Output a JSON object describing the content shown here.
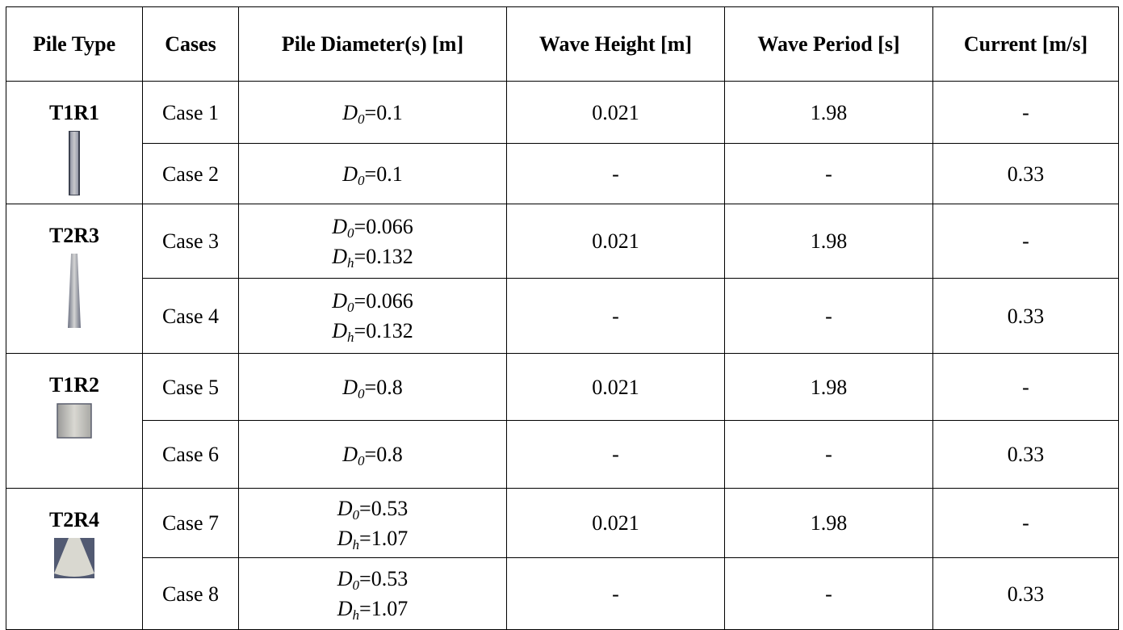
{
  "table": {
    "header": [
      "Pile Type",
      "Cases",
      "Pile Diameter(s) [m]",
      "Wave Height [m]",
      "Wave Period [s]",
      "Current [m/s]"
    ],
    "groups": [
      {
        "pile_type": "T1R1",
        "rows": [
          {
            "case": "Case 1",
            "diameters": [
              {
                "symbol": "D",
                "subscript": "0",
                "value": "=0.1"
              }
            ],
            "wave_height": 0.021,
            "wave_period": 1.98,
            "current": "-"
          },
          {
            "case": "Case 2",
            "diameters": [
              {
                "symbol": "D",
                "subscript": "0",
                "value": "=0.1"
              }
            ],
            "wave_height": "-",
            "wave_period": "-",
            "current": 0.33
          }
        ]
      },
      {
        "pile_type": "T2R3",
        "rows": [
          {
            "case": "Case 3",
            "diameters": [
              {
                "symbol": "D",
                "subscript": "0",
                "value": "=0.066"
              },
              {
                "symbol": "D",
                "subscript": "h",
                "value": "=0.132"
              }
            ],
            "wave_height": 0.021,
            "wave_period": 1.98,
            "current": "-"
          },
          {
            "case": "Case 4",
            "diameters": [
              {
                "symbol": "D",
                "subscript": "0",
                "value": "=0.066"
              },
              {
                "symbol": "D",
                "subscript": "h",
                "value": "=0.132"
              }
            ],
            "wave_height": "-",
            "wave_period": "-",
            "current": 0.33
          }
        ]
      },
      {
        "pile_type": "T1R2",
        "rows": [
          {
            "case": "Case 5",
            "diameters": [
              {
                "symbol": "D",
                "subscript": "0",
                "value": "=0.8"
              }
            ],
            "wave_height": 0.021,
            "wave_period": 1.98,
            "current": "-"
          },
          {
            "case": "Case 6",
            "diameters": [
              {
                "symbol": "D",
                "subscript": "0",
                "value": "=0.8"
              }
            ],
            "wave_height": "-",
            "wave_period": "-",
            "current": 0.33
          }
        ]
      },
      {
        "pile_type": "T2R4",
        "rows": [
          {
            "case": "Case 7",
            "diameters": [
              {
                "symbol": "D",
                "subscript": "0",
                "value": "=0.53"
              },
              {
                "symbol": "D",
                "subscript": "h",
                "value": "=1.07"
              }
            ],
            "wave_height": 0.021,
            "wave_period": 1.98,
            "current": "-"
          },
          {
            "case": "Case 8",
            "diameters": [
              {
                "symbol": "D",
                "subscript": "0",
                "value": "=0.53"
              },
              {
                "symbol": "D",
                "subscript": "h",
                "value": "=1.07"
              }
            ],
            "wave_height": "-",
            "wave_period": "-",
            "current": 0.33
          }
        ]
      }
    ]
  }
}
